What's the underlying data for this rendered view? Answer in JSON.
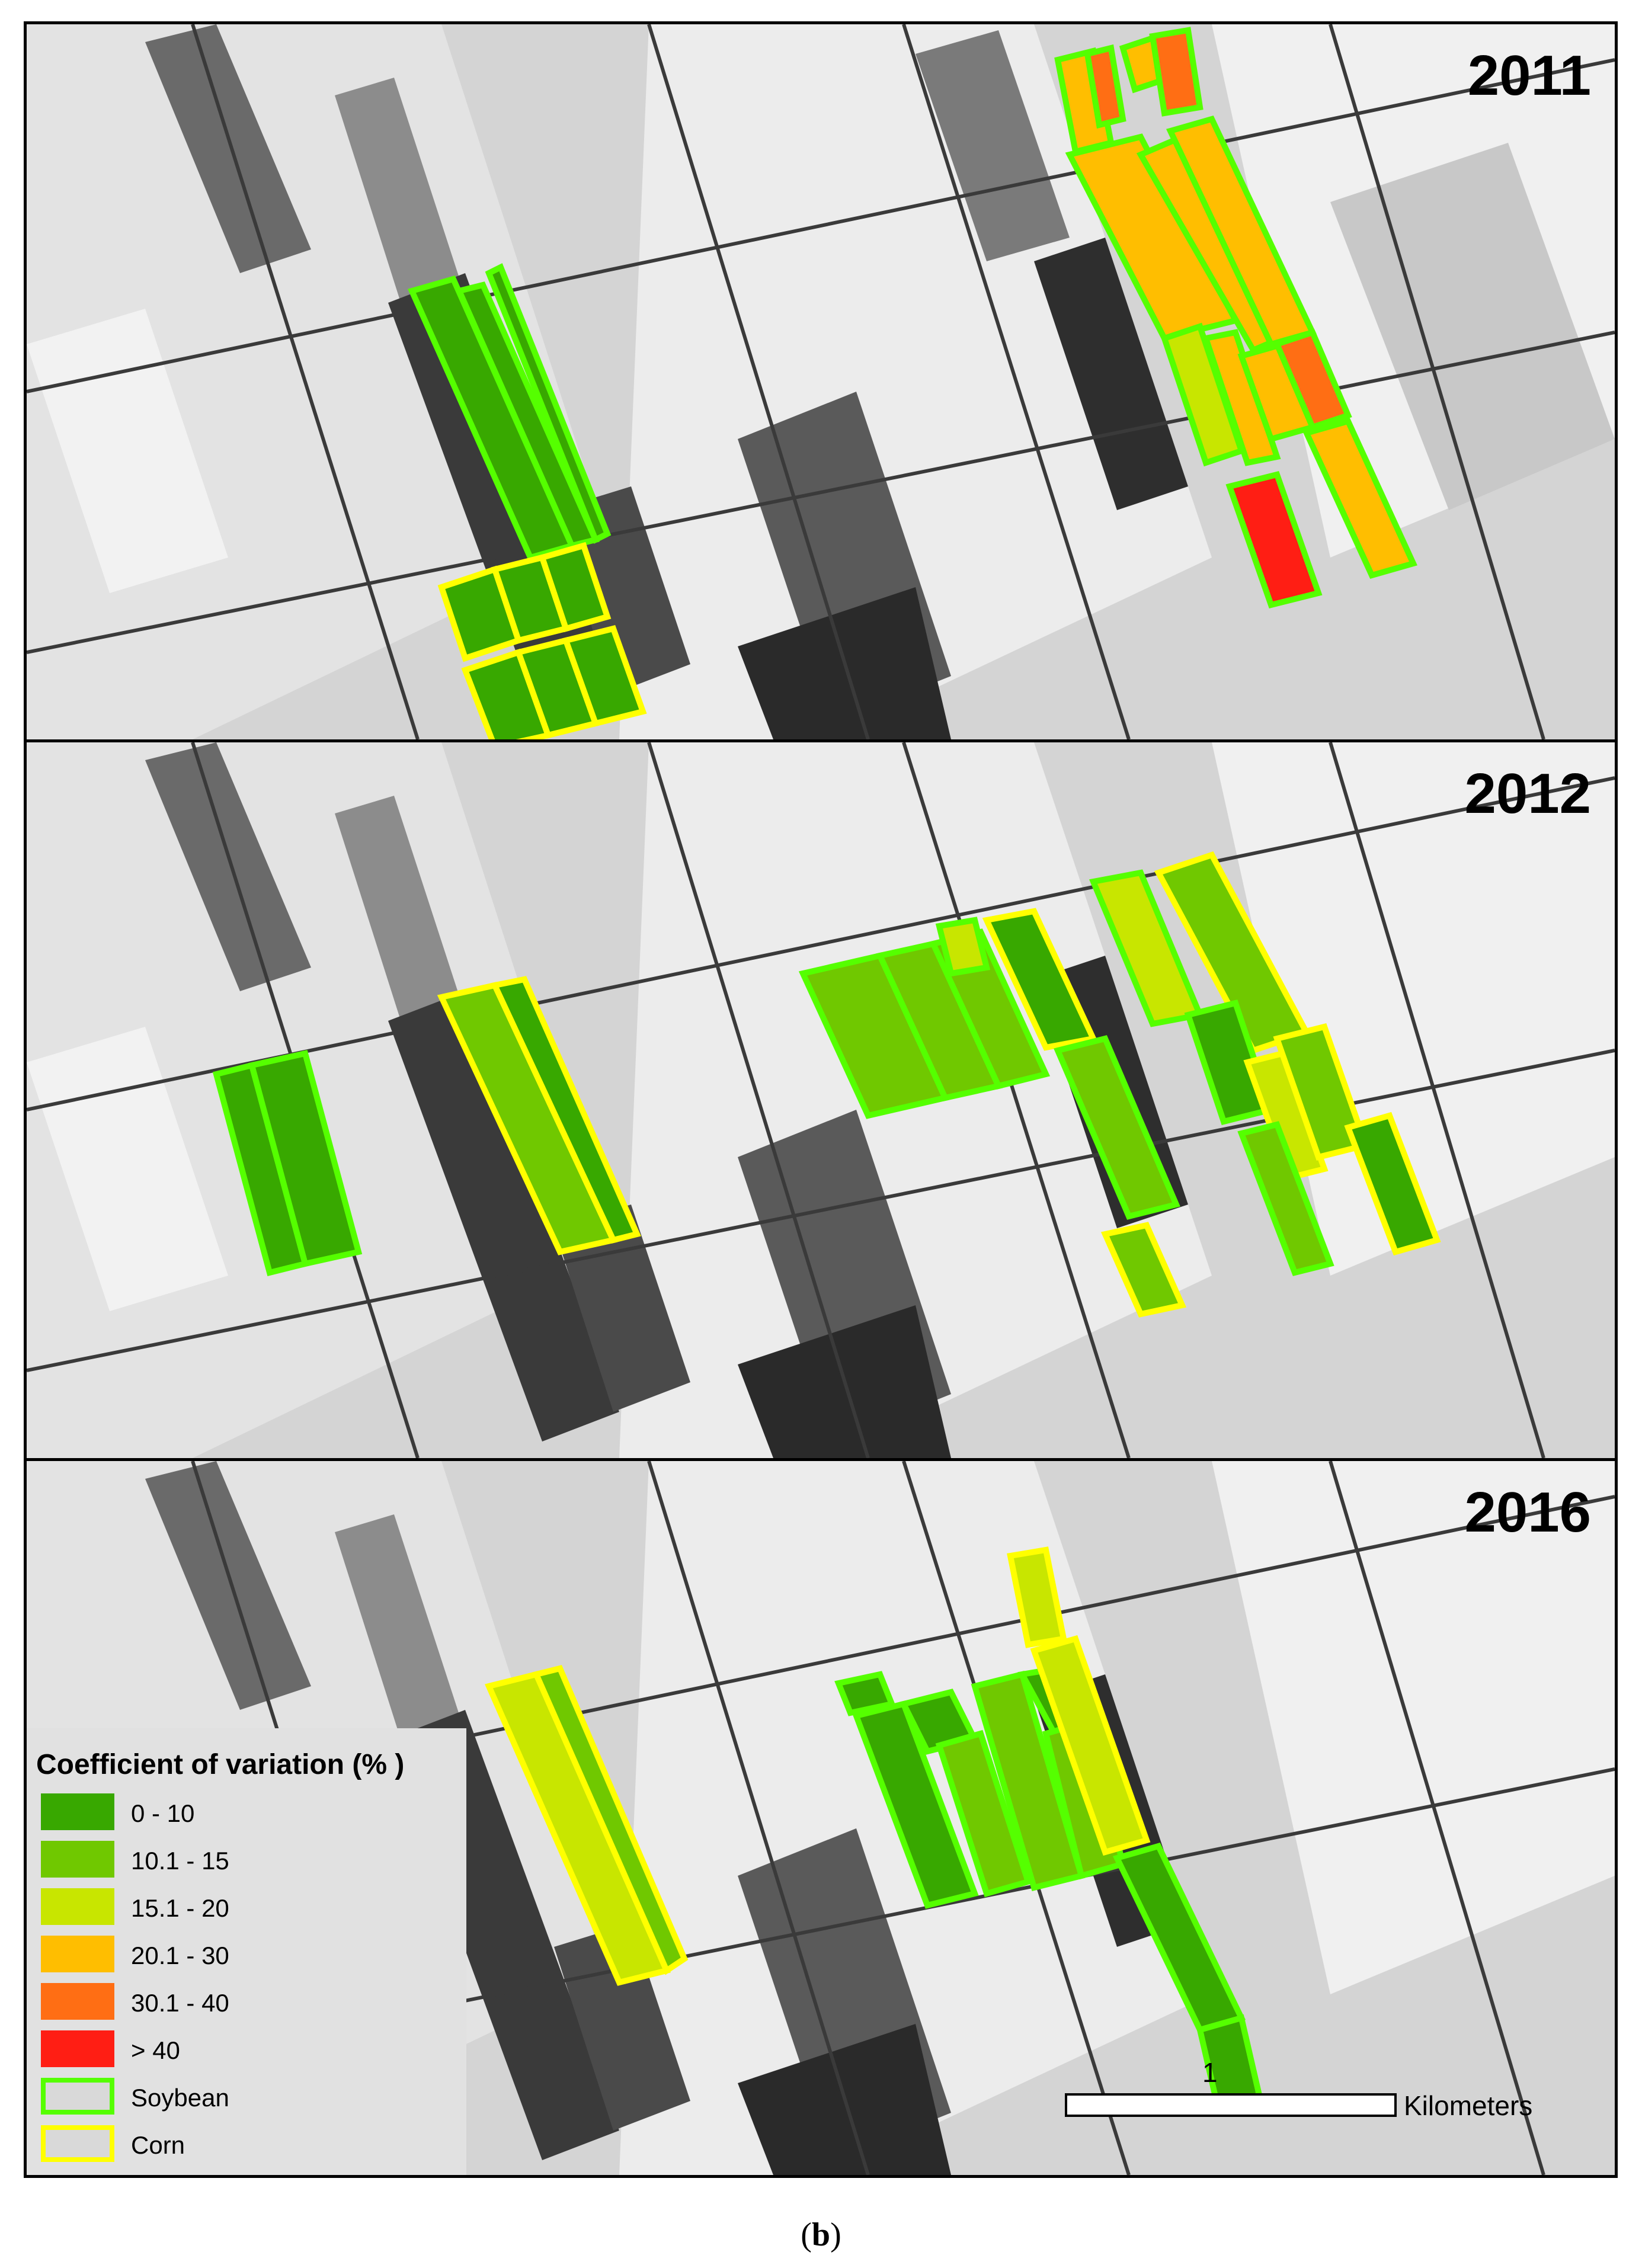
{
  "panels": [
    {
      "year": "2011"
    },
    {
      "year": "2012"
    },
    {
      "year": "2016"
    }
  ],
  "legend": {
    "title": "Coefficient of variation (% )",
    "classes": [
      {
        "label": "0 - 10",
        "color": "#38a800"
      },
      {
        "label": "10.1 - 15",
        "color": "#70c800"
      },
      {
        "label": "15.1 - 20",
        "color": "#c8e600"
      },
      {
        "label": "20.1 - 30",
        "color": "#ffbe00"
      },
      {
        "label": "30.1 - 40",
        "color": "#ff6e14"
      },
      {
        "label": "> 40",
        "color": "#ff1e14"
      }
    ],
    "outlines": [
      {
        "label": "Soybean",
        "color": "#55ff00"
      },
      {
        "label": "Corn",
        "color": "#ffff00"
      }
    ]
  },
  "scalebar": {
    "value": "1",
    "unit": "Kilometers"
  },
  "caption": {
    "open": "(",
    "letter": "b",
    "close": ")"
  },
  "colors": {
    "soybean_outline": "#55ff00",
    "corn_outline": "#ffff00"
  }
}
